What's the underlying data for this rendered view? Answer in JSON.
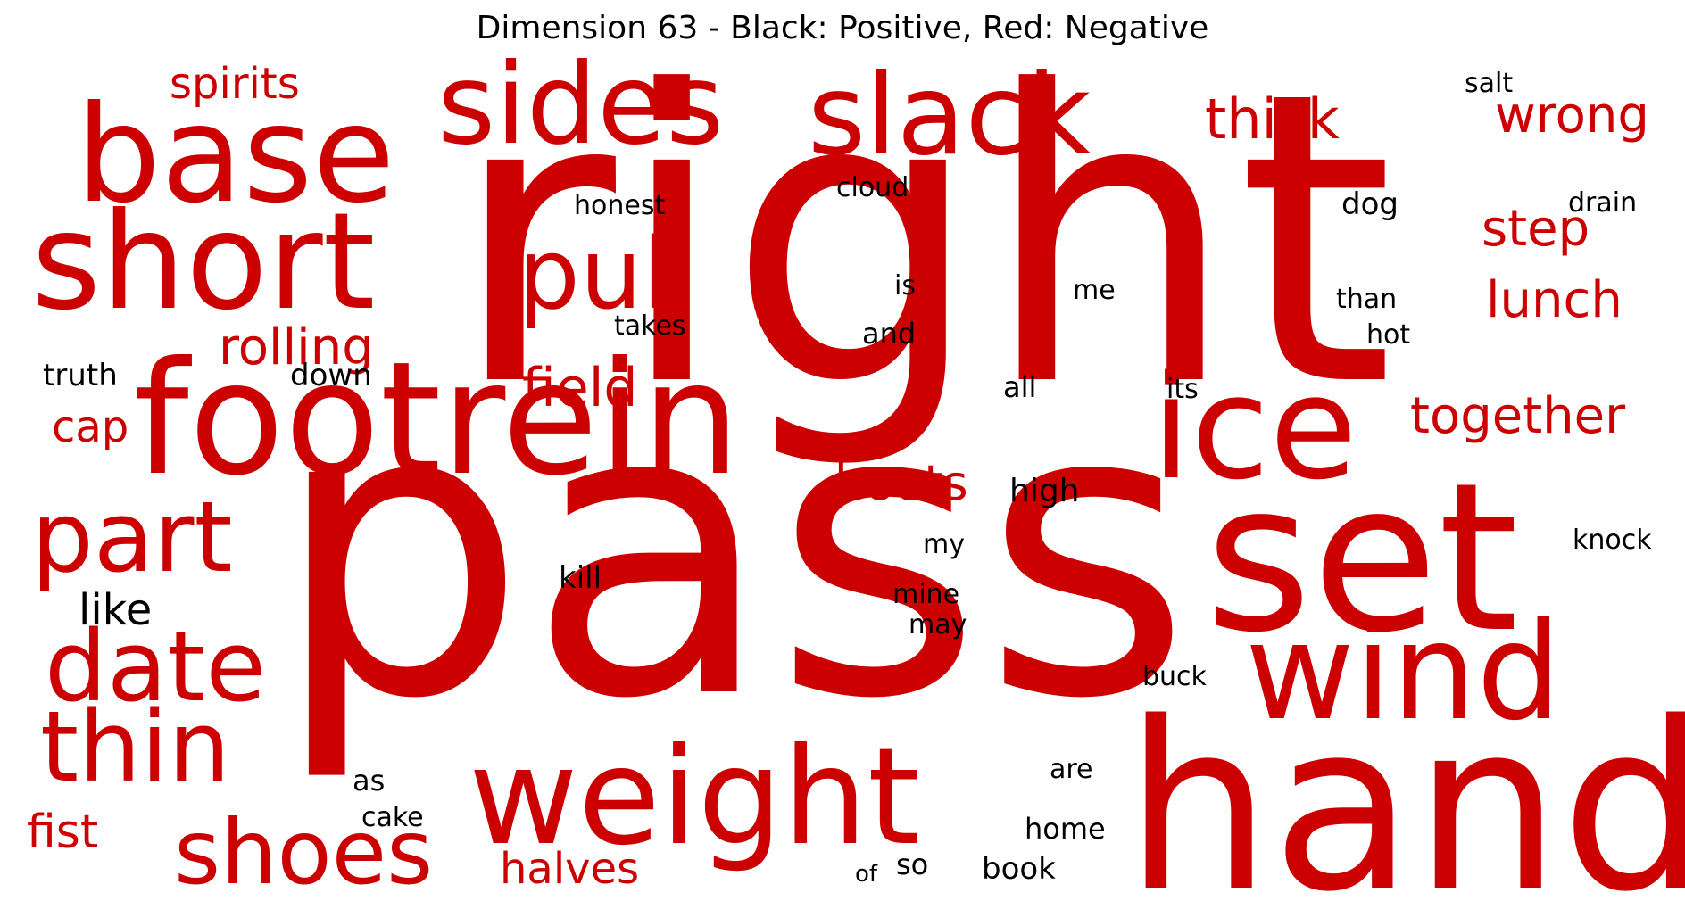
{
  "title": "Dimension 63 - Black: Positive, Red: Negative",
  "colors": {
    "positive": "#000000",
    "negative": "#cc0000",
    "background": "#ffffff"
  },
  "words": [
    {
      "text": "right",
      "sign": "negative"
    },
    {
      "text": "pass",
      "sign": "negative"
    },
    {
      "text": "hand",
      "sign": "negative"
    },
    {
      "text": "footrein",
      "sign": "negative"
    },
    {
      "text": "set",
      "sign": "negative"
    },
    {
      "text": "base",
      "sign": "negative"
    },
    {
      "text": "sides",
      "sign": "negative"
    },
    {
      "text": "slack",
      "sign": "negative"
    },
    {
      "text": "short",
      "sign": "negative"
    },
    {
      "text": "weight",
      "sign": "negative"
    },
    {
      "text": "wind",
      "sign": "negative"
    },
    {
      "text": "ice",
      "sign": "negative"
    },
    {
      "text": "pull",
      "sign": "negative"
    },
    {
      "text": "part",
      "sign": "negative"
    },
    {
      "text": "date",
      "sign": "negative"
    },
    {
      "text": "thin",
      "sign": "negative"
    },
    {
      "text": "shoes",
      "sign": "negative"
    },
    {
      "text": "field",
      "sign": "negative"
    },
    {
      "text": "thick",
      "sign": "negative"
    },
    {
      "text": "wrong",
      "sign": "negative"
    },
    {
      "text": "step",
      "sign": "negative"
    },
    {
      "text": "lunch",
      "sign": "negative"
    },
    {
      "text": "together",
      "sign": "negative"
    },
    {
      "text": "rolling",
      "sign": "negative"
    },
    {
      "text": "spirits",
      "sign": "negative"
    },
    {
      "text": "hoots",
      "sign": "negative"
    },
    {
      "text": "fist",
      "sign": "negative"
    },
    {
      "text": "halves",
      "sign": "negative"
    },
    {
      "text": "cap",
      "sign": "negative"
    },
    {
      "text": "like",
      "sign": "positive"
    },
    {
      "text": "truth",
      "sign": "positive"
    },
    {
      "text": "down",
      "sign": "positive"
    },
    {
      "text": "honest",
      "sign": "positive"
    },
    {
      "text": "cloud",
      "sign": "positive"
    },
    {
      "text": "takes",
      "sign": "positive"
    },
    {
      "text": "is",
      "sign": "positive"
    },
    {
      "text": "me",
      "sign": "positive"
    },
    {
      "text": "and",
      "sign": "positive"
    },
    {
      "text": "all",
      "sign": "positive"
    },
    {
      "text": "its",
      "sign": "positive"
    },
    {
      "text": "dog",
      "sign": "positive"
    },
    {
      "text": "salt",
      "sign": "positive"
    },
    {
      "text": "drain",
      "sign": "positive"
    },
    {
      "text": "than",
      "sign": "positive"
    },
    {
      "text": "hot",
      "sign": "positive"
    },
    {
      "text": "high",
      "sign": "positive"
    },
    {
      "text": "kill",
      "sign": "positive"
    },
    {
      "text": "my",
      "sign": "positive"
    },
    {
      "text": "mine",
      "sign": "positive"
    },
    {
      "text": "may",
      "sign": "positive"
    },
    {
      "text": "knock",
      "sign": "positive"
    },
    {
      "text": "buck",
      "sign": "positive"
    },
    {
      "text": "as",
      "sign": "positive"
    },
    {
      "text": "cake",
      "sign": "positive"
    },
    {
      "text": "are",
      "sign": "positive"
    },
    {
      "text": "home",
      "sign": "positive"
    },
    {
      "text": "so",
      "sign": "positive"
    },
    {
      "text": "book",
      "sign": "positive"
    },
    {
      "text": "of",
      "sign": "positive"
    }
  ]
}
